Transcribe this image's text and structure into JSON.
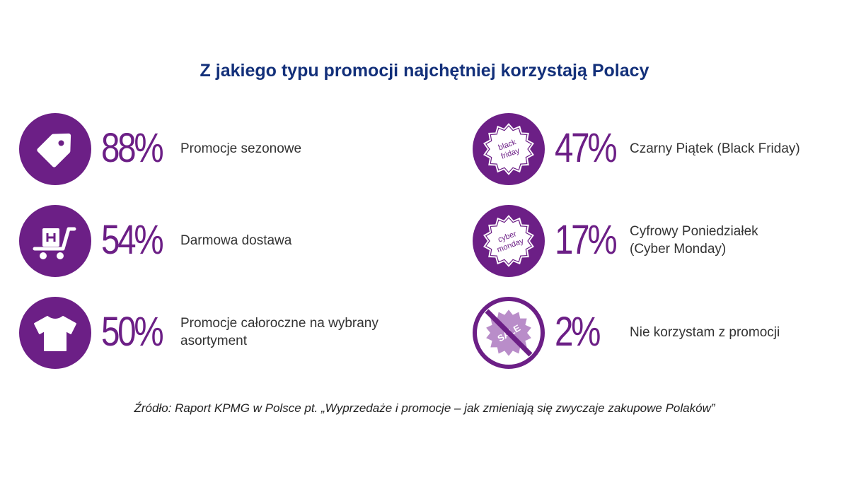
{
  "title": "Z jakiego typu promocji najchętniej korzystają Polacy",
  "source": "Źródło: Raport KPMG w Polsce pt. „Wyprzedaże i promocje – jak zmieniają się zwyczaje zakupowe Polaków”",
  "colors": {
    "accent": "#6c1f86",
    "title": "#13307a",
    "text": "#333333"
  },
  "chart_data": {
    "type": "table",
    "title": "Z jakiego typu promocji najchętniej korzystają Polacy",
    "items": [
      {
        "icon": "price-tag-icon",
        "value": 88,
        "display": "88%",
        "label_lines": [
          "Promocje sezonowe"
        ]
      },
      {
        "icon": "delivery-cart-icon",
        "value": 54,
        "display": "54%",
        "label_lines": [
          "Darmowa dostawa"
        ]
      },
      {
        "icon": "t-shirt-icon",
        "value": 50,
        "display": "50%",
        "label_lines": [
          "Promocje całoroczne na wybrany",
          "asortyment"
        ]
      },
      {
        "icon": "black-friday-badge-icon",
        "badge_text": [
          "black",
          "friday"
        ],
        "value": 47,
        "display": "47%",
        "label_lines": [
          "Czarny Piątek (Black Friday)"
        ]
      },
      {
        "icon": "cyber-monday-badge-icon",
        "badge_text": [
          "cyber",
          "monday"
        ],
        "value": 17,
        "display": "17%",
        "label_lines": [
          "Cyfrowy Poniedziałek",
          "(Cyber Monday)"
        ]
      },
      {
        "icon": "no-sale-icon",
        "badge_text": [
          "SALE"
        ],
        "value": 2,
        "display": "2%",
        "label_lines": [
          "Nie korzystam z promocji"
        ]
      }
    ]
  }
}
